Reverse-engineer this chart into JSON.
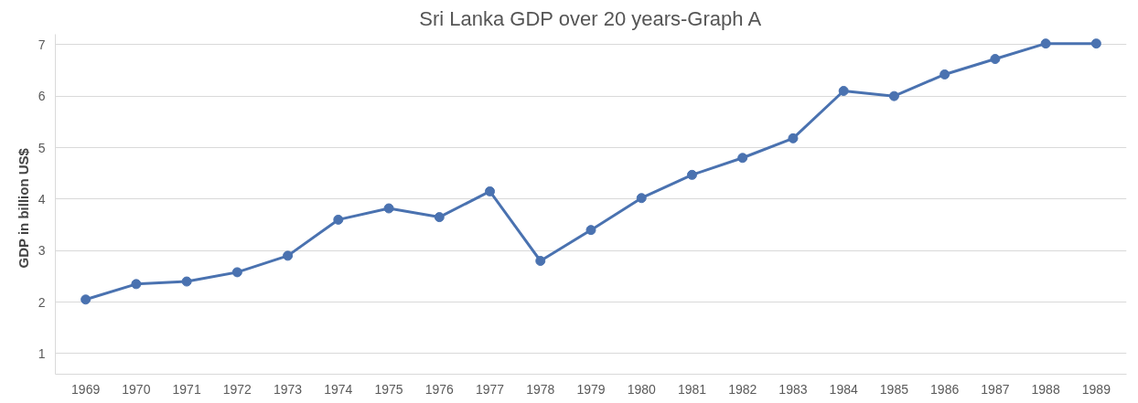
{
  "chart_data": {
    "type": "line",
    "title": "Sri Lanka GDP over 20 years-Graph A",
    "ylabel": "GDP in  billion  US$",
    "categories": [
      "1969",
      "1970",
      "1971",
      "1972",
      "1973",
      "1974",
      "1975",
      "1976",
      "1977",
      "1978",
      "1979",
      "1980",
      "1981",
      "1982",
      "1983",
      "1984",
      "1985",
      "1986",
      "1987",
      "1988",
      "1989"
    ],
    "series": [
      {
        "color": "#4a72b0",
        "values": [
          2.05,
          2.35,
          2.4,
          2.58,
          2.9,
          3.6,
          3.82,
          3.65,
          4.15,
          2.8,
          3.4,
          4.02,
          4.47,
          4.8,
          5.18,
          6.1,
          6.0,
          6.42,
          6.72,
          7.02,
          7.02
        ]
      }
    ],
    "ylim": [
      0.6,
      7.2
    ],
    "yticks": [
      1,
      2,
      3,
      4,
      5,
      6,
      7
    ],
    "grid": "y",
    "marker": "circle"
  }
}
